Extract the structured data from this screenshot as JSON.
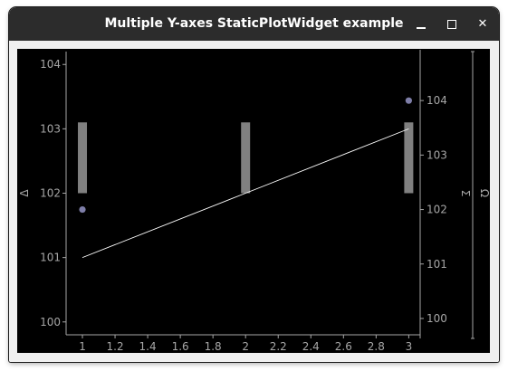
{
  "window": {
    "title": "Multiple Y-axes StaticPlotWidget example"
  },
  "chart_data": {
    "type": "line",
    "background": "#000000",
    "axis_color": "#a6a6a6",
    "x_axis": {
      "range": [
        0.9,
        3.07
      ],
      "ticks": [
        "1",
        "1.2",
        "1.4",
        "1.6",
        "1.8",
        "2",
        "2.2",
        "2.4",
        "2.6",
        "2.8",
        "3"
      ]
    },
    "y_axes": [
      {
        "name": "Δ",
        "side": "left",
        "range": [
          99.8,
          104.2
        ],
        "ticks": [
          "100",
          "101",
          "102",
          "103",
          "104"
        ]
      },
      {
        "name": "Σ",
        "side": "right",
        "range": [
          99.7,
          104.9
        ],
        "ticks": [
          "100",
          "101",
          "102",
          "103",
          "104"
        ]
      },
      {
        "name": "Ω",
        "side": "right",
        "ticks": []
      }
    ],
    "series": [
      {
        "type": "line",
        "axis": "Δ",
        "color": "#ffffff",
        "x": [
          1,
          2,
          3
        ],
        "y": [
          101,
          102,
          103
        ]
      },
      {
        "type": "bar",
        "axis": "Δ",
        "color": "#808080",
        "x": [
          1,
          2,
          3
        ],
        "y_low": [
          102,
          102,
          102
        ],
        "y_high": [
          103.1,
          103.1,
          103.1
        ]
      },
      {
        "type": "scatter",
        "axis": "Σ",
        "color": "#7e7ea8",
        "x": [
          1,
          3
        ],
        "y": [
          102,
          104
        ]
      }
    ]
  }
}
